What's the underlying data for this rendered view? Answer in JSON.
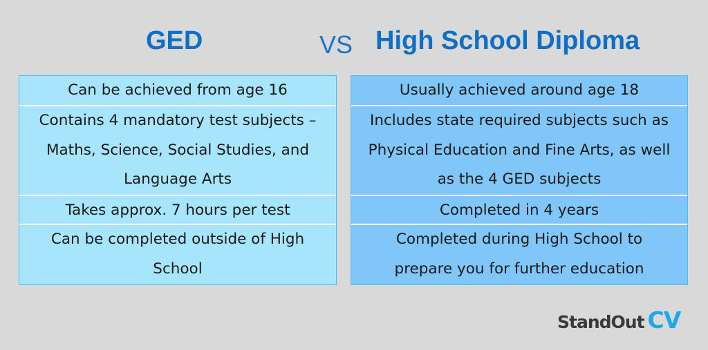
{
  "header": {
    "left_title": "GED",
    "vs": "VS",
    "right_title": "High School Diploma"
  },
  "left_rows": [
    "Can be achieved from age 16",
    "Contains 4 mandatory test subjects – Maths, Science, Social Studies, and Language Arts",
    "Takes approx. 7 hours per test",
    "Can be completed outside of High School"
  ],
  "right_rows": [
    "Usually achieved around age 18",
    "Includes state required subjects such as Physical Education and Fine Arts, as well as the 4 GED subjects",
    "Completed in 4 years",
    "Completed during High School to prepare you for further education"
  ],
  "logo": {
    "text1": "StandOut",
    "text2": "CV"
  },
  "colors": {
    "title": "#0f6fc6",
    "left_fill": "#a7e5fc",
    "right_fill": "#80c6f9",
    "logo_accent": "#1ea8ec"
  }
}
